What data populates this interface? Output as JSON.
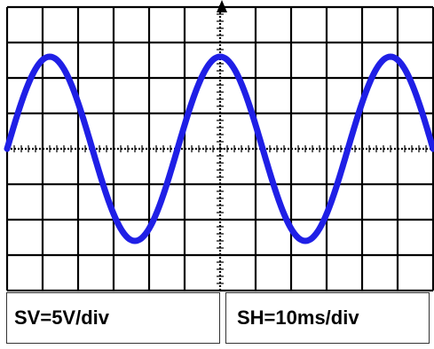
{
  "oscilloscope": {
    "volts_per_div": "SV=5V/div",
    "time_per_div": "SH=10ms/div",
    "waveform": "sine",
    "waveform_color": "#1f1fe6",
    "grid_color": "#000000",
    "divisions": {
      "horizontal": 12,
      "vertical": 8
    },
    "signal": {
      "amplitude_div": 2.6,
      "period_div": 4.8,
      "phase_start": "zero crossing rising"
    }
  }
}
